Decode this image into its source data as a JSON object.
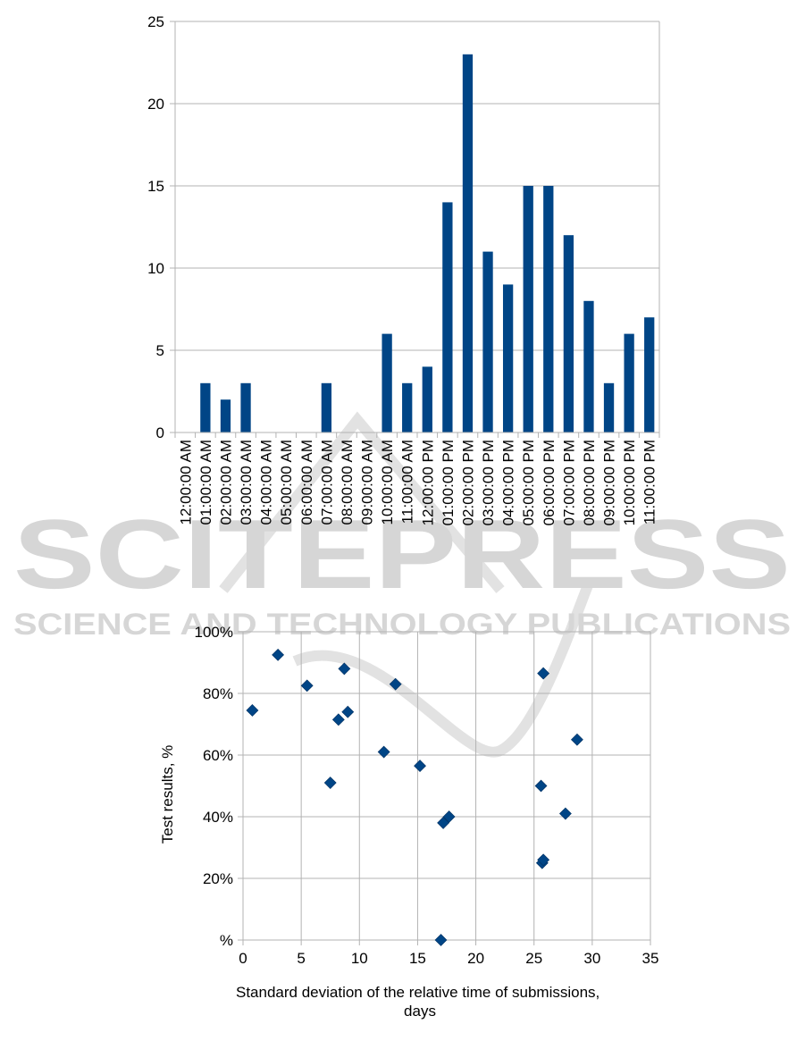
{
  "watermark": {
    "title": "SCITEPRESS",
    "subtitle": "SCIENCE AND TECHNOLOGY PUBLICATIONS",
    "color": "#d6d6d6"
  },
  "chart_data": [
    {
      "type": "bar",
      "title": "",
      "xlabel": "",
      "ylabel": "",
      "ylim": [
        0,
        25
      ],
      "yticks": [
        "0",
        "5",
        "10",
        "15",
        "20",
        "25"
      ],
      "grid": true,
      "legend": "none",
      "bar_color": "#004586",
      "categories": [
        "12:00:00 AM",
        "01:00:00 AM",
        "02:00:00 AM",
        "03:00:00 AM",
        "04:00:00 AM",
        "05:00:00 AM",
        "06:00:00 AM",
        "07:00:00 AM",
        "08:00:00 AM",
        "09:00:00 AM",
        "10:00:00 AM",
        "11:00:00 AM",
        "12:00:00 PM",
        "01:00:00 PM",
        "02:00:00 PM",
        "03:00:00 PM",
        "04:00:00 PM",
        "05:00:00 PM",
        "06:00:00 PM",
        "07:00:00 PM",
        "08:00:00 PM",
        "09:00:00 PM",
        "10:00:00 PM",
        "11:00:00 PM"
      ],
      "values": [
        0,
        3,
        2,
        3,
        0,
        0,
        0,
        3,
        0,
        0,
        6,
        3,
        4,
        14,
        23,
        11,
        9,
        15,
        15,
        12,
        8,
        3,
        6,
        7
      ]
    },
    {
      "type": "scatter",
      "title": "",
      "xlabel": "Standard deviation of the relative time of submissions, days",
      "ylabel": "Test results, %",
      "xlim": [
        0,
        35
      ],
      "ylim": [
        0,
        100
      ],
      "xticks": [
        "0",
        "5",
        "10",
        "15",
        "20",
        "25",
        "30",
        "35"
      ],
      "yticks": [
        "%",
        "20%",
        "40%",
        "60%",
        "80%",
        "100%"
      ],
      "grid": true,
      "legend": "none",
      "marker_color": "#004586",
      "points": [
        {
          "x": 0.8,
          "y": 74.5
        },
        {
          "x": 3.0,
          "y": 92.5
        },
        {
          "x": 5.5,
          "y": 82.5
        },
        {
          "x": 7.5,
          "y": 51.0
        },
        {
          "x": 8.2,
          "y": 71.5
        },
        {
          "x": 8.7,
          "y": 88.0
        },
        {
          "x": 9.0,
          "y": 74.0
        },
        {
          "x": 12.1,
          "y": 61.0
        },
        {
          "x": 13.1,
          "y": 83.0
        },
        {
          "x": 15.2,
          "y": 56.5
        },
        {
          "x": 17.0,
          "y": 0.0
        },
        {
          "x": 17.2,
          "y": 38.0
        },
        {
          "x": 17.7,
          "y": 40.0
        },
        {
          "x": 25.6,
          "y": 50.0
        },
        {
          "x": 25.7,
          "y": 25.0
        },
        {
          "x": 25.8,
          "y": 26.0
        },
        {
          "x": 25.8,
          "y": 86.5
        },
        {
          "x": 27.7,
          "y": 41.0
        },
        {
          "x": 28.7,
          "y": 65.0
        }
      ]
    }
  ]
}
